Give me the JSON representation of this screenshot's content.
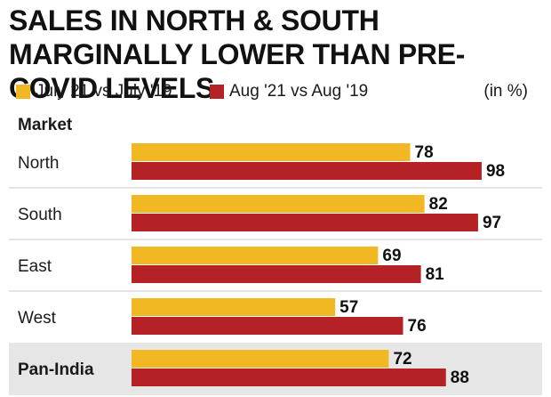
{
  "title": "SALES IN NORTH & SOUTH MARGINALLY LOWER THAN PRE-COVID LEVELS",
  "legend": [
    {
      "label": "July 21 vs July '19",
      "color": "#f2b824"
    },
    {
      "label": "Aug '21 vs Aug '19",
      "color": "#b52226"
    }
  ],
  "unit_label": "(in %)",
  "row_header": "Market",
  "colors": {
    "highlight_row": "#e6e6e6",
    "divider": "#c8c8c8"
  },
  "chart_data": {
    "type": "bar",
    "orientation": "horizontal",
    "title": "SALES IN NORTH & SOUTH MARGINALLY LOWER THAN PRE-COVID LEVELS",
    "categories": [
      "North",
      "South",
      "East",
      "West",
      "Pan-India"
    ],
    "highlight_category": "Pan-India",
    "series": [
      {
        "name": "July 21 vs July '19",
        "values": [
          78,
          82,
          69,
          57,
          72
        ]
      },
      {
        "name": "Aug '21 vs Aug '19",
        "values": [
          98,
          97,
          81,
          76,
          88
        ]
      }
    ],
    "xlim": [
      0,
      100
    ],
    "unit": "%"
  }
}
